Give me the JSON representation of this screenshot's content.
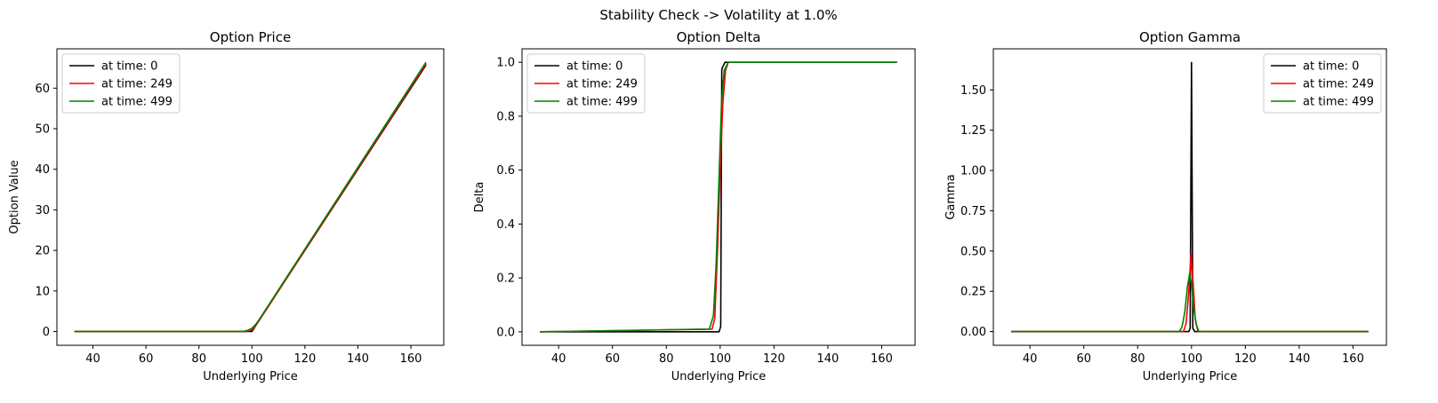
{
  "suptitle": "Stability Check -> Volatility at 1.0%",
  "chart_data": [
    {
      "type": "line",
      "title": "Option Price",
      "xlabel": "Underlying Price",
      "ylabel": "Option Value",
      "xlim": [
        26.4,
        172.4
      ],
      "ylim": [
        -3.4,
        69.7
      ],
      "xticks": [
        40,
        60,
        80,
        100,
        120,
        140,
        160
      ],
      "yticks": [
        0,
        10,
        20,
        30,
        40,
        50,
        60
      ],
      "legend_loc": "upper-left",
      "series": [
        {
          "name": "at time: 0",
          "color": "#000000",
          "x": [
            33.0,
            99.0,
            100.0,
            165.7
          ],
          "y": [
            0,
            0,
            0,
            65.7
          ]
        },
        {
          "name": "at time: 249",
          "color": "#ff0000",
          "x": [
            33.0,
            97.5,
            99.0,
            100.0,
            101.0,
            103.0,
            165.7
          ],
          "y": [
            0,
            0,
            0.15,
            0.4,
            1.1,
            3.0,
            66.0
          ]
        },
        {
          "name": "at time: 499",
          "color": "#008000",
          "x": [
            33.0,
            96.5,
            98.5,
            100.0,
            101.5,
            103.0,
            165.7
          ],
          "y": [
            0,
            0,
            0.3,
            0.8,
            1.8,
            3.2,
            66.4
          ]
        }
      ]
    },
    {
      "type": "line",
      "title": "Option Delta",
      "xlabel": "Underlying Price",
      "ylabel": "Delta",
      "xlim": [
        26.4,
        172.4
      ],
      "ylim": [
        -0.05,
        1.05
      ],
      "xticks": [
        40,
        60,
        80,
        100,
        120,
        140,
        160
      ],
      "yticks": [
        0.0,
        0.2,
        0.4,
        0.6,
        0.8,
        1.0
      ],
      "tick_labels_y": [
        "0.0",
        "0.2",
        "0.4",
        "0.6",
        "0.8",
        "1.0"
      ],
      "legend_loc": "upper-left",
      "series": [
        {
          "name": "at time: 0",
          "color": "#000000",
          "x": [
            33.0,
            99.6,
            100.2,
            100.6,
            100.8,
            101.8,
            165.7
          ],
          "y": [
            0,
            0,
            0.02,
            0.97,
            0.98,
            1.0,
            1.0
          ]
        },
        {
          "name": "at time: 249",
          "color": "#ff0000",
          "x": [
            33.0,
            97.0,
            98.0,
            99.0,
            100.0,
            101.0,
            102.0,
            103.0,
            165.7
          ],
          "y": [
            0,
            0.01,
            0.05,
            0.3,
            0.6,
            0.85,
            0.97,
            1.0,
            1.0
          ]
        },
        {
          "name": "at time: 499",
          "color": "#008000",
          "x": [
            33.0,
            96.0,
            97.5,
            98.5,
            99.5,
            100.5,
            101.5,
            103.0,
            165.7
          ],
          "y": [
            0,
            0.01,
            0.06,
            0.25,
            0.55,
            0.85,
            0.97,
            1.0,
            1.0
          ]
        }
      ]
    },
    {
      "type": "line",
      "title": "Option Gamma",
      "xlabel": "Underlying Price",
      "ylabel": "Gamma",
      "xlim": [
        26.4,
        172.4
      ],
      "ylim": [
        -0.085,
        1.755
      ],
      "xticks": [
        40,
        60,
        80,
        100,
        120,
        140,
        160
      ],
      "yticks": [
        0.0,
        0.25,
        0.5,
        0.75,
        1.0,
        1.25,
        1.5
      ],
      "tick_labels_y": [
        "0.00",
        "0.25",
        "0.50",
        "0.75",
        "1.00",
        "1.25",
        "1.50"
      ],
      "legend_loc": "upper-right",
      "series": [
        {
          "name": "at time: 0",
          "color": "#000000",
          "x": [
            33.0,
            99.0,
            99.5,
            100.0,
            100.5,
            101.2,
            165.7
          ],
          "y": [
            0,
            0,
            0.02,
            1.67,
            0.02,
            0,
            0
          ]
        },
        {
          "name": "at time: 249",
          "color": "#ff0000",
          "x": [
            33.0,
            97.0,
            98.0,
            99.0,
            99.8,
            100.6,
            101.4,
            102.4,
            165.7
          ],
          "y": [
            0,
            0,
            0.05,
            0.25,
            0.48,
            0.3,
            0.08,
            0,
            0
          ]
        },
        {
          "name": "at time: 499",
          "color": "#008000",
          "x": [
            33.0,
            95.5,
            96.5,
            97.5,
            98.5,
            99.3,
            100.0,
            100.8,
            101.8,
            102.8,
            165.7
          ],
          "y": [
            0,
            0,
            0.03,
            0.12,
            0.28,
            0.36,
            0.3,
            0.15,
            0.04,
            0,
            0
          ]
        }
      ]
    }
  ]
}
